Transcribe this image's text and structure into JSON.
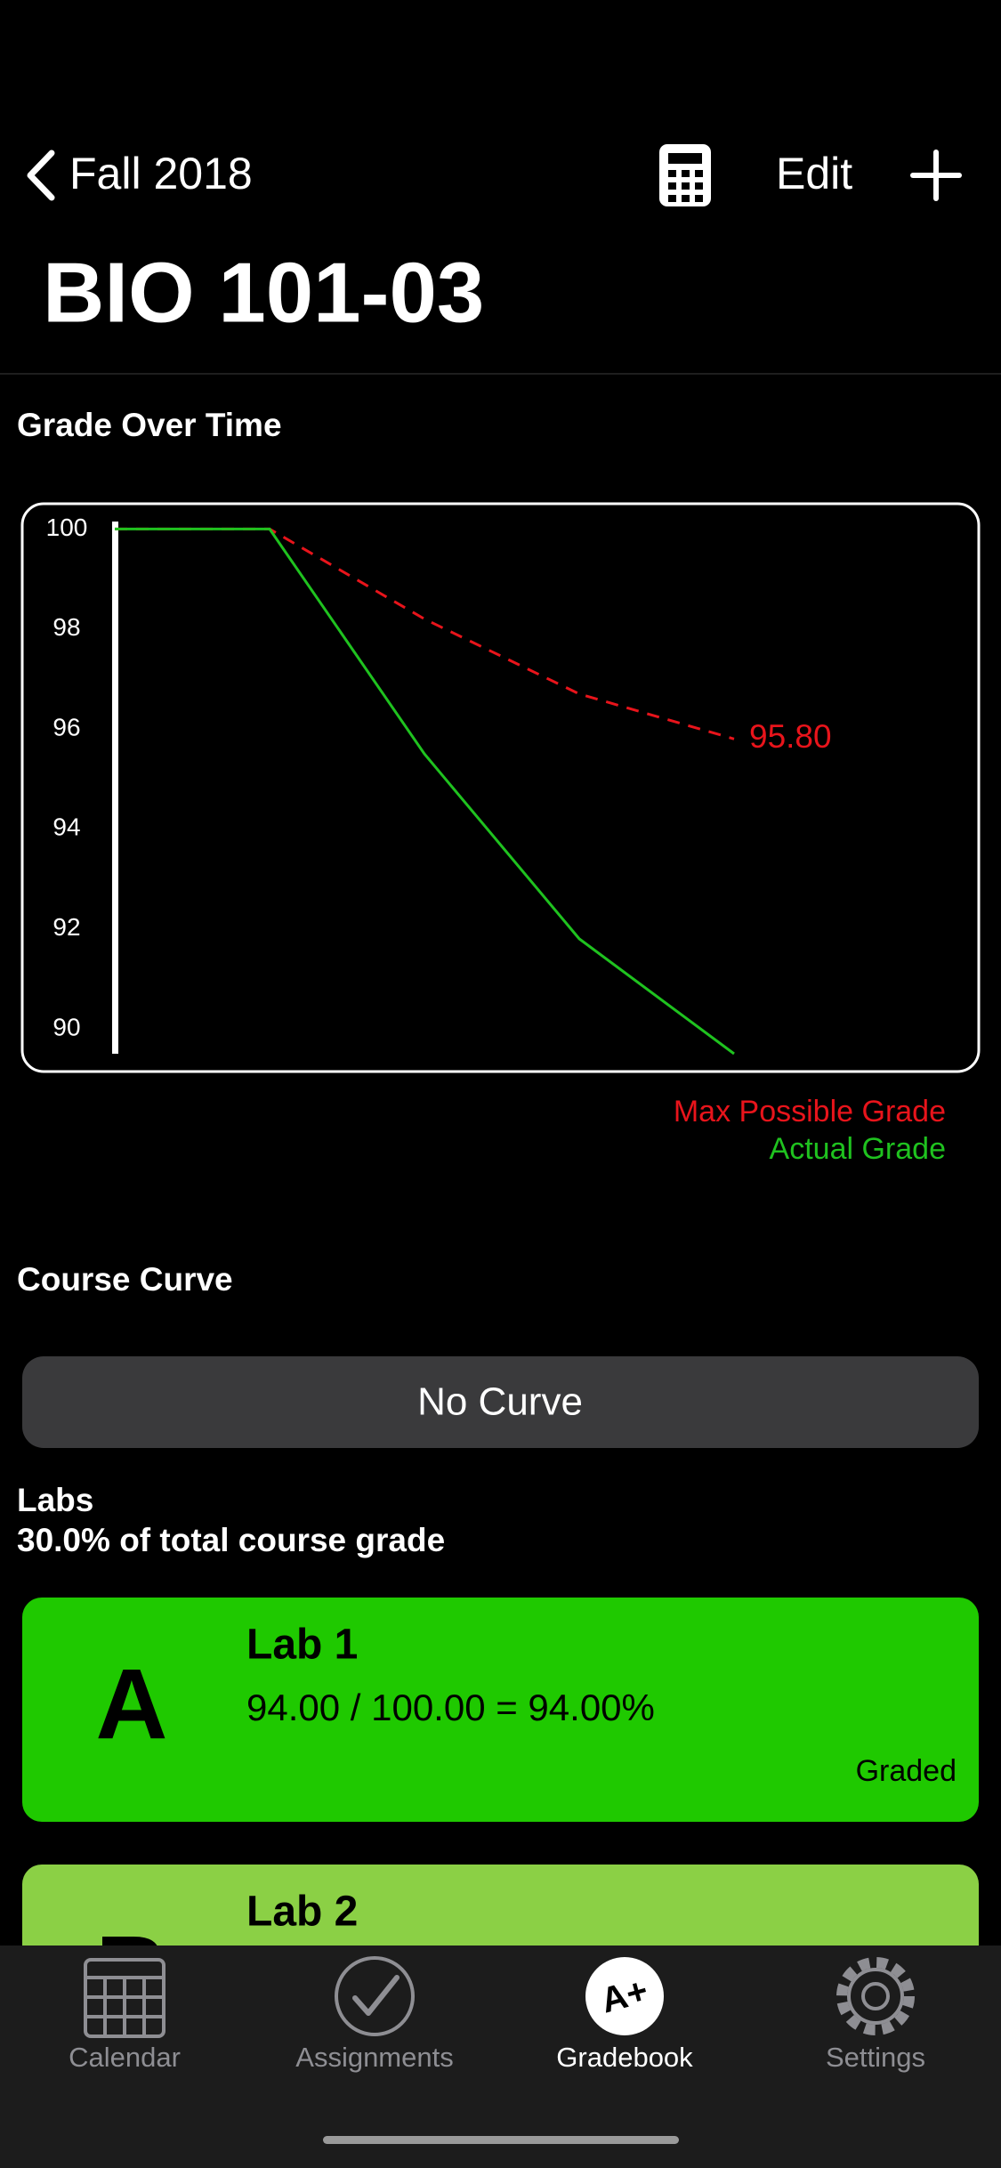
{
  "nav": {
    "back": "Fall 2018",
    "edit": "Edit"
  },
  "header": {
    "title": "BIO 101-03"
  },
  "chart_section": {
    "title": "Grade Over Time"
  },
  "chart_data": {
    "type": "line",
    "categories": [
      null,
      null,
      null,
      null,
      null
    ],
    "series": [
      {
        "name": "Max Possible Grade",
        "color": "#e8141b",
        "dashed": true,
        "values": [
          100,
          100,
          98.2,
          96.7,
          95.8
        ],
        "value_labels": [
          null,
          null,
          null,
          null,
          "95.80"
        ]
      },
      {
        "name": "Actual Grade",
        "color": "#1fc21f",
        "values": [
          100,
          100,
          95.5,
          91.8,
          89.5
        ]
      }
    ],
    "ylim": [
      89.5,
      100.15
    ],
    "yticks": [
      90,
      92,
      94,
      96,
      98,
      100
    ],
    "legend": "bottom-right"
  },
  "curve": {
    "title": "Course Curve",
    "button": "No Curve"
  },
  "category": {
    "title": "Labs",
    "weight": "30.0% of total course grade"
  },
  "assignments": [
    {
      "letter": "A",
      "name": "Lab 1",
      "score": "94.00 / 100.00 = 94.00%",
      "status": "Graded"
    },
    {
      "letter": "B",
      "name": "Lab 2"
    }
  ],
  "tabs": [
    {
      "label": "Calendar"
    },
    {
      "label": "Assignments"
    },
    {
      "label": "Gradebook",
      "badge": "A+",
      "active": true
    },
    {
      "label": "Settings"
    }
  ]
}
